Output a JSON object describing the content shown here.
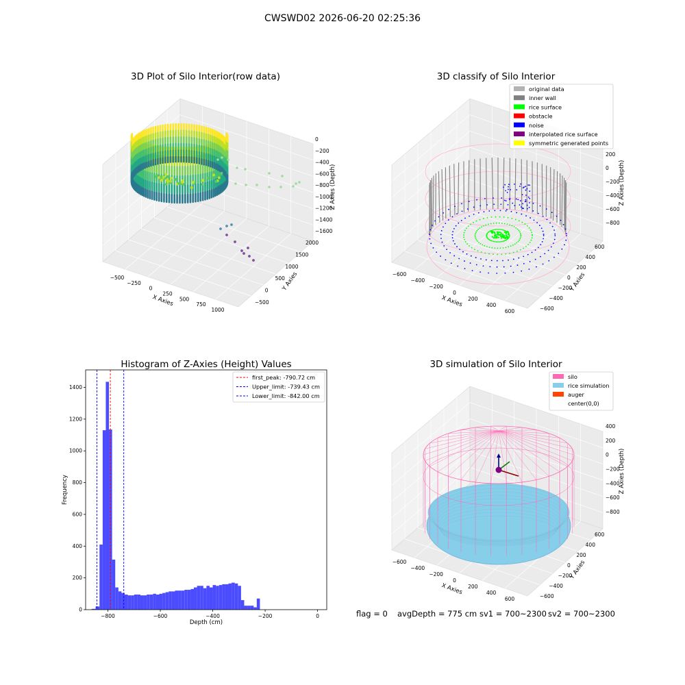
{
  "figure": {
    "suptitle": "CWSWD02 2026-06-20 02:25:36",
    "footer": {
      "flag": "flag = 0",
      "avg_depth": "avgDepth = 775 cm",
      "sv1": "sv1 = 700~2300",
      "sv2": "sv2 = 700~2300"
    }
  },
  "colors": {
    "histogram_bar": "#4c4cff",
    "first_peak_line": "#ff0000",
    "limit_line": "#0000ff",
    "original_data": "#b3b3b3",
    "inner_wall": "#808080",
    "rice_surface": "#00ff00",
    "obstacle": "#ff0000",
    "noise": "#0000ff",
    "interpolated_rice_surface": "#800080",
    "symmetric_generated_points": "#ffff00",
    "silo": "#ff69b4",
    "rice_simulation": "#87ceeb",
    "auger": "#ff4500"
  },
  "chart_data": [
    {
      "type": "scatter",
      "projection": "3d",
      "title": "3D Plot of Silo Interior(row data)",
      "xlabel": "X Axies",
      "ylabel": "Y Axies",
      "zlabel": "Z Axies (Depth)",
      "xticks": [
        "−500",
        "−250",
        "0",
        "250",
        "500",
        "750",
        "1000"
      ],
      "yticks": [
        "−500",
        "0",
        "500",
        "1000",
        "1500",
        "2000"
      ],
      "zticks": [
        "−1600",
        "−1400",
        "−1200",
        "−1000",
        "−800",
        "−600",
        "−400",
        "−200",
        "0"
      ],
      "xlim": [
        -650,
        1100
      ],
      "ylim": [
        -650,
        2100
      ],
      "zlim": [
        -1650,
        50
      ],
      "colormap": "viridis"
    },
    {
      "type": "scatter",
      "projection": "3d",
      "title": "3D classify of Silo Interior",
      "xlabel": "X Axies",
      "ylabel": "Y Axies",
      "zlabel": "Z Axies (Depth)",
      "xticks": [
        "−600",
        "−400",
        "−200",
        "0",
        "200",
        "400",
        "600"
      ],
      "yticks": [
        "−600",
        "−400",
        "−200",
        "0",
        "200",
        "400",
        "600"
      ],
      "zticks": [
        "−800",
        "−600",
        "−400",
        "−200",
        "0",
        "200"
      ],
      "xlim": [
        -650,
        650
      ],
      "ylim": [
        -650,
        650
      ],
      "zlim": [
        -900,
        300
      ],
      "legend_position": "upper-right",
      "legend": [
        {
          "label": "original data",
          "color": "#b3b3b3"
        },
        {
          "label": "inner wall",
          "color": "#808080"
        },
        {
          "label": "rice surface",
          "color": "#00ff00"
        },
        {
          "label": "obstacle",
          "color": "#ff0000"
        },
        {
          "label": "noise",
          "color": "#0000ff"
        },
        {
          "label": "interpolated rice surface",
          "color": "#800080"
        },
        {
          "label": "symmetric generated points",
          "color": "#ffff00"
        }
      ]
    },
    {
      "type": "bar",
      "title": "Histogram of Z-Axies (Height) Values",
      "xlabel": "Depth (cm)",
      "ylabel": "Frequency",
      "xlim": [
        -885,
        35
      ],
      "ylim": [
        0,
        1510
      ],
      "xticks": [
        "−800",
        "−600",
        "−400",
        "−200",
        "0"
      ],
      "xtick_values": [
        -800,
        -600,
        -400,
        -200,
        0
      ],
      "yticks": [
        "0",
        "200",
        "400",
        "600",
        "800",
        "1000",
        "1200",
        "1400"
      ],
      "ytick_values": [
        0,
        200,
        400,
        600,
        800,
        1000,
        1200,
        1400
      ],
      "bin_edges": [
        -862,
        -847,
        -832,
        -820,
        -808,
        -796,
        -784,
        -772,
        -760,
        -748,
        -736,
        -724,
        -712,
        -700,
        -688,
        -676,
        -664,
        -652,
        -640,
        -628,
        -616,
        -604,
        -592,
        -580,
        -568,
        -556,
        -544,
        -532,
        -520,
        -508,
        -496,
        -484,
        -472,
        -460,
        -448,
        -436,
        -424,
        -412,
        -400,
        -388,
        -376,
        -364,
        -352,
        -340,
        -328,
        -316,
        -304,
        -292,
        -280,
        -268,
        -256,
        -244,
        -232,
        -220,
        -208,
        -196,
        -184,
        -172,
        -160,
        -148,
        -136,
        -124,
        -112,
        -100,
        -88,
        -76,
        -64,
        -52,
        -40,
        -28,
        -16,
        -4
      ],
      "counts": [
        5,
        20,
        410,
        1130,
        1435,
        1135,
        315,
        140,
        115,
        105,
        95,
        90,
        90,
        95,
        95,
        90,
        90,
        95,
        95,
        100,
        95,
        100,
        105,
        110,
        115,
        115,
        120,
        120,
        120,
        125,
        125,
        130,
        140,
        150,
        150,
        135,
        150,
        140,
        155,
        150,
        155,
        160,
        160,
        165,
        170,
        165,
        150,
        60,
        25,
        25,
        25,
        15,
        70,
        0,
        0,
        0,
        0,
        0,
        0,
        0,
        0,
        0,
        0,
        0,
        0,
        0,
        0,
        0,
        0,
        0,
        0
      ],
      "vlines": [
        {
          "name": "first_peak",
          "x": -790.72,
          "color": "#ff0000"
        },
        {
          "name": "Upper_limit",
          "x": -739.43,
          "color": "#0000ff"
        },
        {
          "name": "Lower_limit",
          "x": -842.0,
          "color": "#0000ff"
        }
      ],
      "legend_position": "upper-right",
      "legend": [
        {
          "label": "first_peak: -790.72 cm",
          "color": "#ff0000"
        },
        {
          "label": "Upper_limit: -739.43 cm",
          "color": "#0000ff"
        },
        {
          "label": "Lower_limit: -842.00 cm",
          "color": "#0000ff"
        }
      ]
    },
    {
      "type": "scatter",
      "projection": "3d",
      "title": "3D simulation of Silo Interior",
      "xlabel": "X Axies",
      "ylabel": "Y Axies",
      "zlabel": "Z Axies (Depth)",
      "xticks": [
        "−600",
        "−400",
        "−200",
        "0",
        "200",
        "400",
        "600"
      ],
      "yticks": [
        "−600",
        "−400",
        "−200",
        "0",
        "200",
        "400",
        "600"
      ],
      "zticks": [
        "−800",
        "−600",
        "−400",
        "−200",
        "0",
        "200",
        "400"
      ],
      "xlim": [
        -650,
        650
      ],
      "ylim": [
        -650,
        650
      ],
      "zlim": [
        -900,
        450
      ],
      "legend_position": "upper-right",
      "legend": [
        {
          "label": "silo",
          "color": "#ff69b4"
        },
        {
          "label": "rice simulation",
          "color": "#87ceeb"
        },
        {
          "label": "auger",
          "color": "#ff4500"
        },
        {
          "label": "center(0,0)",
          "color": "#ffffff"
        }
      ]
    }
  ]
}
